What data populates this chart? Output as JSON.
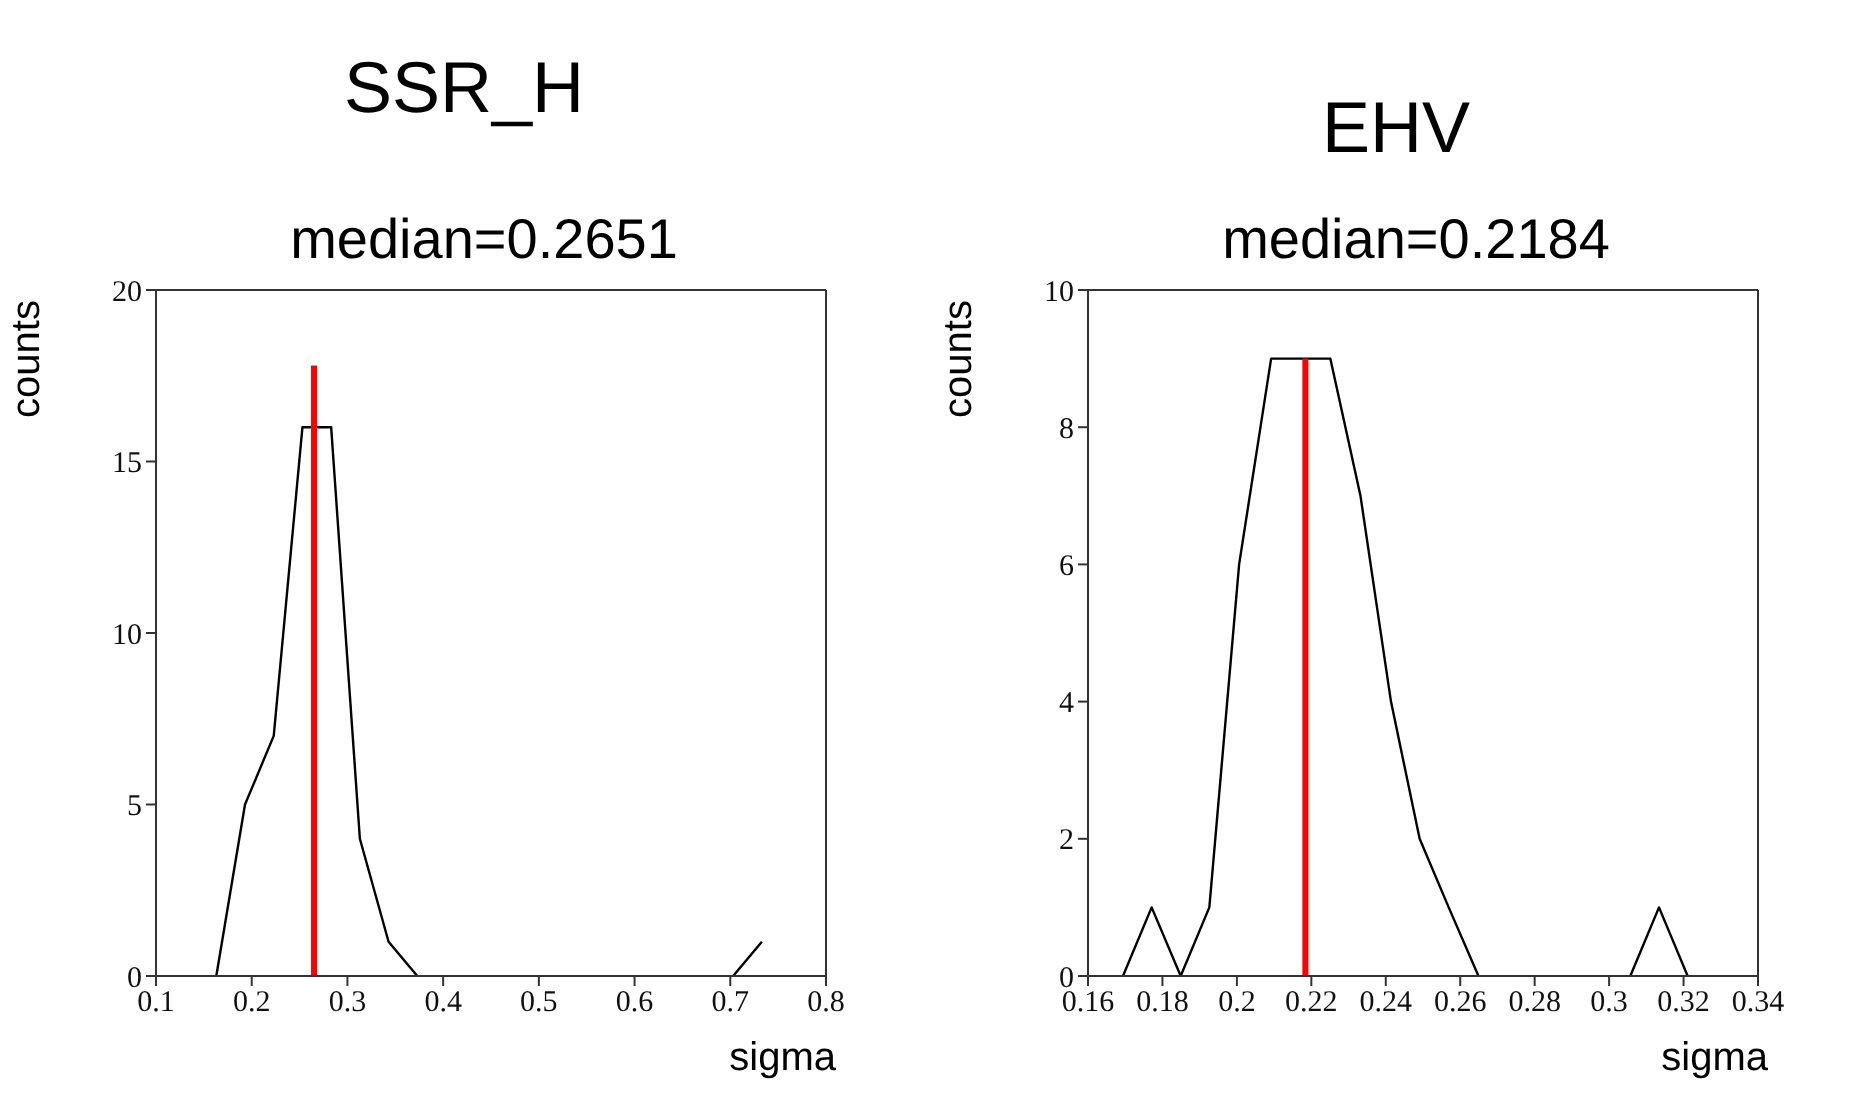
{
  "chart_data": [
    {
      "type": "line",
      "title": "SSR_H",
      "subtitle": "median=0.2651",
      "xlabel": "sigma",
      "ylabel": "counts",
      "xlim": [
        0.1,
        0.8
      ],
      "xticks": [
        0.1,
        0.2,
        0.3,
        0.4,
        0.5,
        0.6,
        0.7,
        0.8
      ],
      "ylim": [
        0,
        20
      ],
      "yticks": [
        0,
        5,
        10,
        15,
        20
      ],
      "grid": false,
      "marker": "none",
      "line_style": "solid",
      "series": [
        {
          "color": "#000000",
          "x": [
            0.163,
            0.193,
            0.223,
            0.253,
            0.283,
            0.313,
            0.343,
            0.373,
            0.5,
            0.703,
            0.733
          ],
          "values": [
            0,
            5,
            7,
            16,
            16,
            4,
            1,
            0,
            null,
            0,
            1
          ]
        },
        {
          "color": "#ff0000",
          "x": [
            0.2651,
            0.2651
          ],
          "values": [
            0,
            17.8
          ]
        }
      ]
    },
    {
      "type": "line",
      "title": "EHV",
      "subtitle": "median=0.2184",
      "xlabel": "sigma",
      "ylabel": "counts",
      "xlim": [
        0.16,
        0.34
      ],
      "xticks": [
        0.16,
        0.18,
        0.2,
        0.22,
        0.24,
        0.26,
        0.28,
        0.3,
        0.32,
        0.34
      ],
      "ylim": [
        0,
        10
      ],
      "yticks": [
        0,
        2,
        4,
        6,
        8,
        10
      ],
      "grid": false,
      "marker": "none",
      "line_style": "solid",
      "series": [
        {
          "color": "#000000",
          "x": [
            0.1694,
            0.1771,
            0.1849,
            0.1926,
            0.2006,
            0.2092,
            0.2251,
            0.2332,
            0.2414,
            0.2491,
            0.2569,
            0.2649,
            0.285,
            0.3057,
            0.3134,
            0.3211
          ],
          "values": [
            0,
            1,
            0,
            1,
            6,
            9,
            9,
            7,
            4,
            2,
            1,
            0,
            null,
            0,
            1,
            0
          ]
        },
        {
          "color": "#ff0000",
          "x": [
            0.2184,
            0.2184
          ],
          "values": [
            0,
            9
          ]
        }
      ]
    }
  ]
}
